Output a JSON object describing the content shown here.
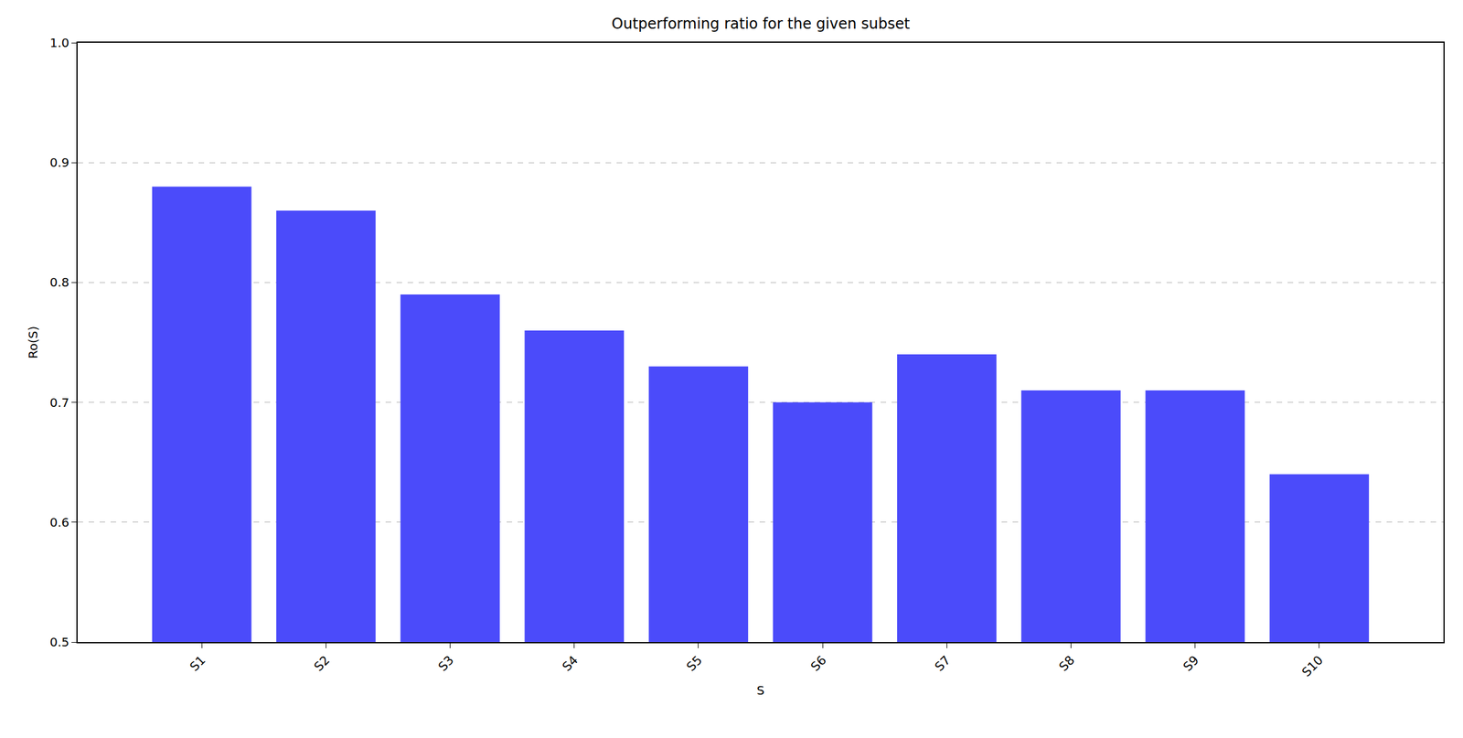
{
  "chart_data": {
    "type": "bar",
    "title": "Outperforming ratio for the given subset",
    "x_label": "S",
    "y_label": "Ro(S)",
    "categories": [
      "S1",
      "S2",
      "S3",
      "S4",
      "S5",
      "S6",
      "S7",
      "S8",
      "S9",
      "S10"
    ],
    "values": [
      0.88,
      0.86,
      0.79,
      0.76,
      0.73,
      0.7,
      0.74,
      0.71,
      0.71,
      0.64
    ],
    "color": "#4b4bfa",
    "ylim": [
      0.5,
      1.0
    ],
    "yticks": [
      0.5,
      0.6,
      0.7,
      0.8,
      0.9,
      {
        "value": 1.0,
        "label": "1.0"
      }
    ],
    "grid": true
  }
}
